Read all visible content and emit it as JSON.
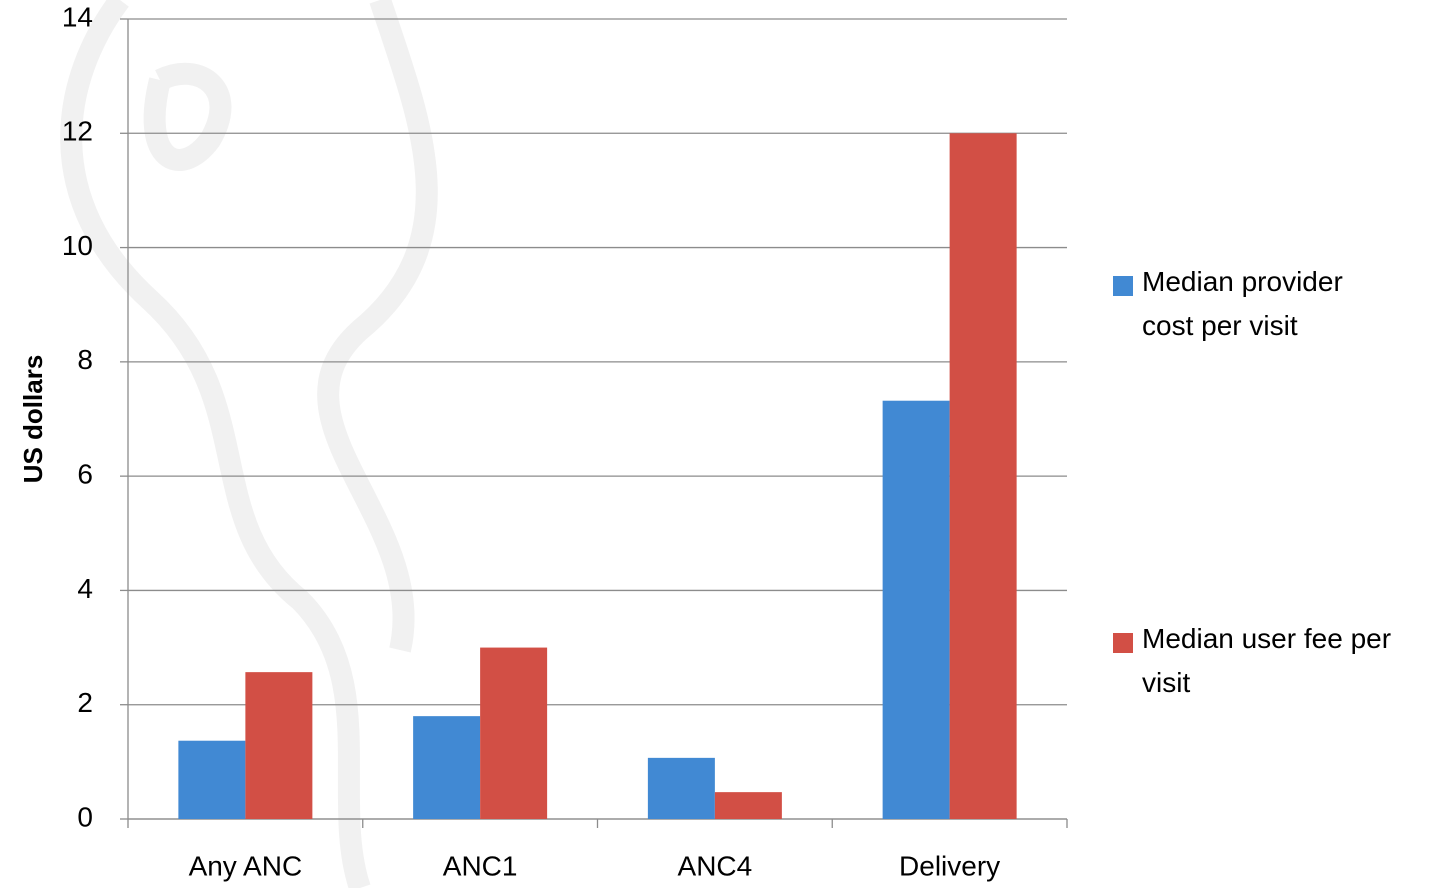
{
  "chart_data": {
    "type": "bar",
    "y_label": "US dollars",
    "categories": [
      "Any ANC",
      "ANC1",
      "ANC4",
      "Delivery"
    ],
    "series": [
      {
        "name": "Median provider cost per visit",
        "color": "#4189d3",
        "values": [
          1.37,
          1.8,
          1.07,
          7.32
        ]
      },
      {
        "name": "Median user fee per visit",
        "color": "#d24f45",
        "values": [
          2.57,
          3.0,
          0.47,
          12.0
        ]
      }
    ],
    "ylim": [
      0,
      14
    ],
    "yticks": [
      0,
      2,
      4,
      6,
      8,
      10,
      12,
      14
    ],
    "grid": true,
    "legend": "right"
  }
}
